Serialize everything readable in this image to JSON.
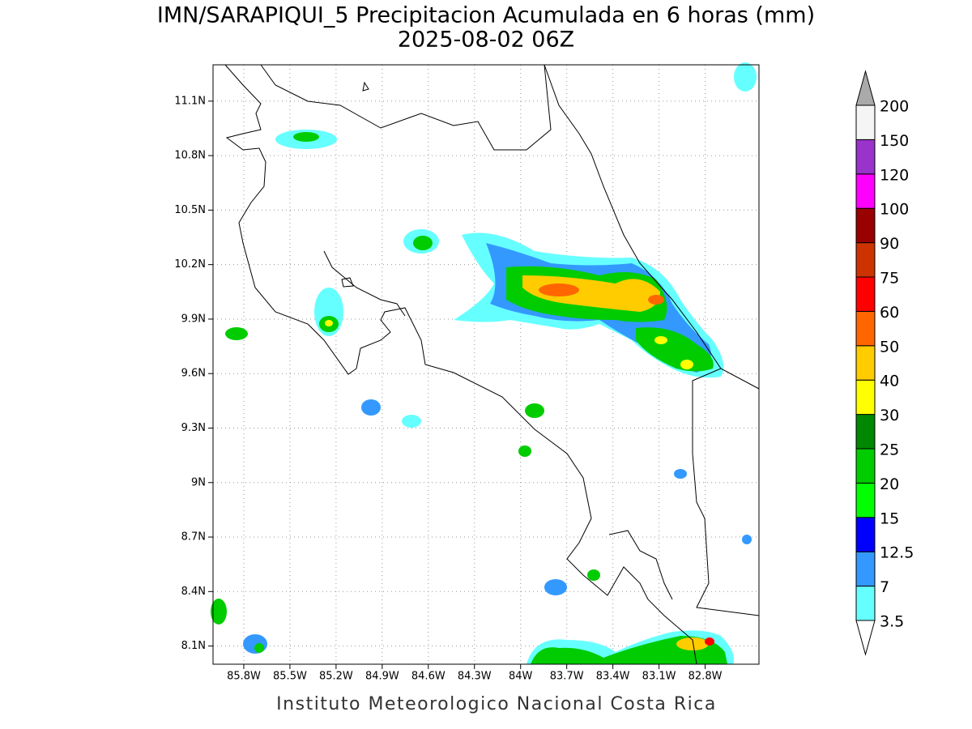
{
  "chart_data": {
    "type": "contour_map",
    "title": "IMN/SARAPIQUI_5 Precipitacion Acumulada en 6 horas (mm)",
    "subtitle": "2025-08-02 06Z",
    "footer": "Instituto Meteorologico Nacional Costa Rica",
    "xlim": [
      -86.0,
      -82.45
    ],
    "ylim": [
      8.0,
      11.3
    ],
    "xticks": [
      {
        "value": -85.8,
        "label": "85.8W"
      },
      {
        "value": -85.5,
        "label": "85.5W"
      },
      {
        "value": -85.2,
        "label": "85.2W"
      },
      {
        "value": -84.9,
        "label": "84.9W"
      },
      {
        "value": -84.6,
        "label": "84.6W"
      },
      {
        "value": -84.3,
        "label": "84.3W"
      },
      {
        "value": -84.0,
        "label": "84W"
      },
      {
        "value": -83.7,
        "label": "83.7W"
      },
      {
        "value": -83.4,
        "label": "83.4W"
      },
      {
        "value": -83.1,
        "label": "83.1W"
      },
      {
        "value": -82.8,
        "label": "82.8W"
      }
    ],
    "yticks": [
      {
        "value": 8.1,
        "label": "8.1N"
      },
      {
        "value": 8.4,
        "label": "8.4N"
      },
      {
        "value": 8.7,
        "label": "8.7N"
      },
      {
        "value": 9.0,
        "label": "9N"
      },
      {
        "value": 9.3,
        "label": "9.3N"
      },
      {
        "value": 9.6,
        "label": "9.6N"
      },
      {
        "value": 9.9,
        "label": "9.9N"
      },
      {
        "value": 10.2,
        "label": "10.2N"
      },
      {
        "value": 10.5,
        "label": "10.5N"
      },
      {
        "value": 10.8,
        "label": "10.8N"
      },
      {
        "value": 11.1,
        "label": "11.1N"
      }
    ],
    "grid": true,
    "colorbar": {
      "levels": [
        3.5,
        7,
        12.5,
        15,
        20,
        25,
        30,
        40,
        50,
        60,
        75,
        90,
        100,
        120,
        150,
        200
      ],
      "colors": [
        "#66ffff",
        "#3399ff",
        "#0000ff",
        "#00ff00",
        "#00cc00",
        "#008800",
        "#ffff00",
        "#ffcc00",
        "#ff6600",
        "#ff0000",
        "#cc3300",
        "#990000",
        "#ff00ff",
        "#9933cc",
        "#f5f5f5"
      ],
      "under_color": "#ffffff",
      "over_color": "#aaaaaa"
    }
  }
}
